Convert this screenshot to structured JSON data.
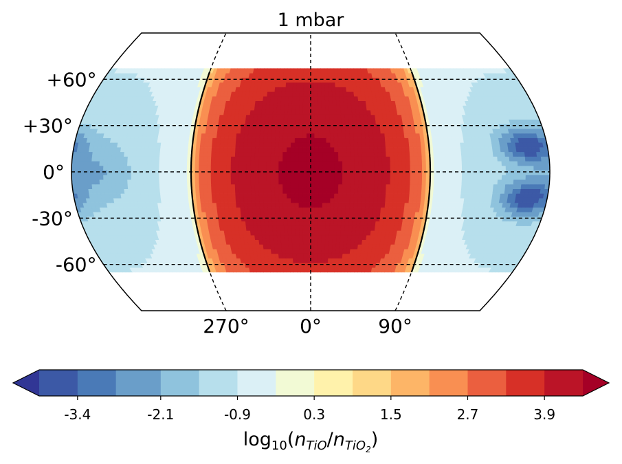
{
  "chart_data": {
    "type": "heatmap",
    "title": "1 mbar",
    "projection": "Robinson",
    "lat_tick_labels": [
      "+60°",
      "+30°",
      "0°",
      "-30°",
      "-60°"
    ],
    "lat_tick_values": [
      60,
      30,
      0,
      -30,
      -60
    ],
    "lon_tick_labels": [
      "270°",
      "0°",
      "90°"
    ],
    "lon_tick_values": [
      -90,
      0,
      90
    ],
    "colorbar": {
      "label_main": "log",
      "label_sub": "10",
      "label_open": "(",
      "label_num": "n",
      "label_num_sub": "TiO",
      "label_slash": "/",
      "label_den": "n",
      "label_den_sub": "TiO",
      "label_den_subsub": "2",
      "label_close": ")",
      "tick_labels": [
        "-3.4",
        "-2.1",
        "-0.9",
        "0.3",
        "1.5",
        "2.7",
        "3.9"
      ],
      "tick_values": [
        -3.4,
        -2.1,
        -0.9,
        0.3,
        1.5,
        2.7,
        3.9
      ],
      "extend": "both",
      "colors": [
        "#313695",
        "#3c59a6",
        "#4a7ab7",
        "#6a9ec9",
        "#8fc3dd",
        "#b7dfec",
        "#dbf0f6",
        "#f2fad5",
        "#fff2ab",
        "#fed887",
        "#fdb567",
        "#f98f52",
        "#eb5f3f",
        "#d73027",
        "#bb1427",
        "#a50026"
      ],
      "boundaries": [
        -4.0,
        -3.4,
        -2.8,
        -2.1,
        -1.5,
        -0.9,
        -0.3,
        0.3,
        0.9,
        1.5,
        2.1,
        2.7,
        3.3,
        3.9,
        4.5
      ]
    },
    "field_description": "dayside maximum ~4.5 centred on 0° longitude, minimum ~-4 on nightside near ±20° latitude, longitude 150-180°",
    "data_lat_range": [
      -65,
      65
    ],
    "contour_level": 0.0
  }
}
